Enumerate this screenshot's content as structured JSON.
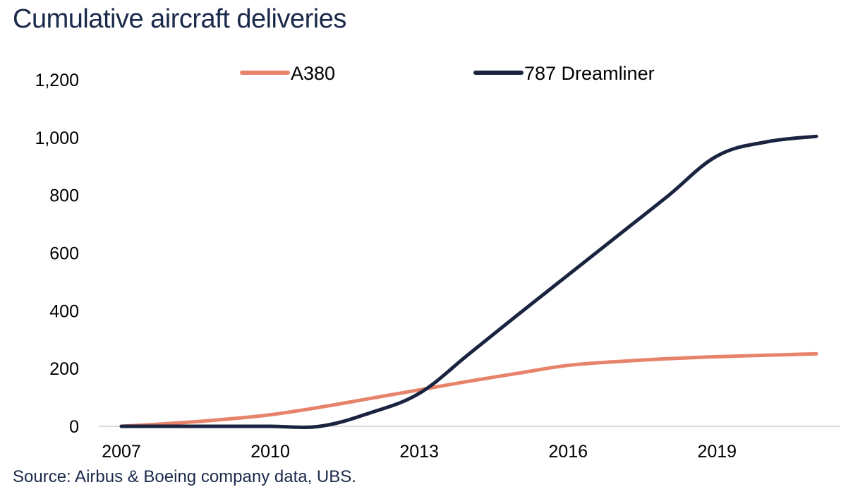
{
  "title": "Cumulative aircraft deliveries",
  "source": "Source: Airbus & Boeing company data, UBS.",
  "colors": {
    "A380": "#e8836b",
    "787 Dreamliner": "#1a2440",
    "title": "#1b2a4a",
    "axis": "#d9d9d9"
  },
  "chart_data": {
    "type": "line",
    "title": "Cumulative aircraft deliveries",
    "xlabel": "",
    "ylabel": "",
    "x": [
      2007,
      2008,
      2009,
      2010,
      2011,
      2012,
      2013,
      2014,
      2015,
      2016,
      2017,
      2018,
      2019,
      2020,
      2021
    ],
    "x_ticks": [
      "2007",
      "2010",
      "2013",
      "2016",
      "2019"
    ],
    "y_ticks": [
      "0",
      "200",
      "400",
      "600",
      "800",
      "1,000",
      "1,200"
    ],
    "ylim": [
      0,
      1200
    ],
    "xlim": [
      2007,
      2021
    ],
    "grid": false,
    "legend": "top",
    "series": [
      {
        "name": "A380",
        "values": [
          0,
          10,
          23,
          40,
          66,
          96,
          126,
          156,
          184,
          211,
          224,
          234,
          241,
          246,
          251
        ]
      },
      {
        "name": "787 Dreamliner",
        "values": [
          0,
          0,
          0,
          0,
          0,
          46,
          114,
          250,
          388,
          524,
          660,
          796,
          936,
          985,
          1004
        ]
      }
    ]
  }
}
